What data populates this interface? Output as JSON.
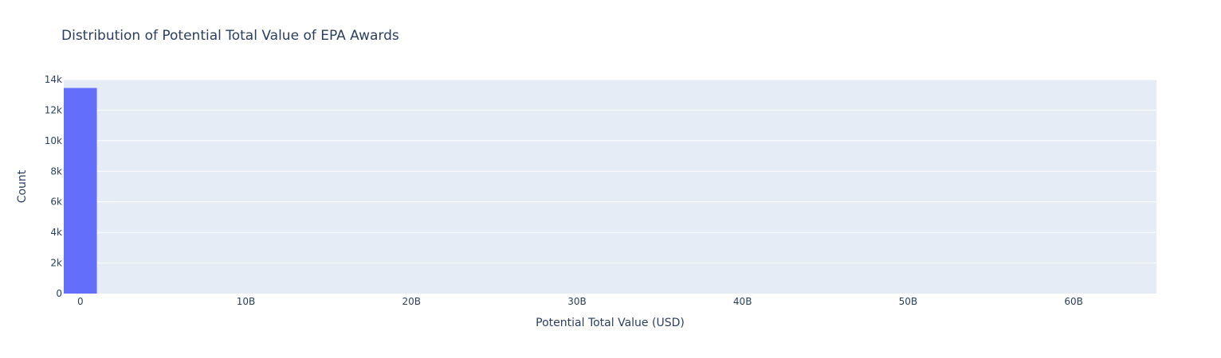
{
  "colors": {
    "plot_background": "#E5ECF6",
    "gridline": "#FFFFFF",
    "bar": "#636EFA",
    "text": "#2A3F5F"
  },
  "chart_data": {
    "type": "bar",
    "title": "Distribution of Potential Total Value of EPA Awards",
    "xlabel": "Potential Total Value (USD)",
    "ylabel": "Count",
    "xlim": [
      -1000000000,
      65000000000
    ],
    "ylim": [
      0,
      14000
    ],
    "grid": true,
    "x_tick_values": [
      0,
      10000000000,
      20000000000,
      30000000000,
      40000000000,
      50000000000,
      60000000000
    ],
    "x_tick_labels": [
      "0",
      "10B",
      "20B",
      "30B",
      "40B",
      "50B",
      "60B"
    ],
    "y_tick_values": [
      0,
      2000,
      4000,
      6000,
      8000,
      10000,
      12000,
      14000
    ],
    "y_tick_labels": [
      "0",
      "2k",
      "4k",
      "6k",
      "8k",
      "10k",
      "12k",
      "14k"
    ],
    "bins": [
      {
        "x0": -1000000000,
        "x1": 1000000000,
        "count": 13450
      }
    ]
  }
}
